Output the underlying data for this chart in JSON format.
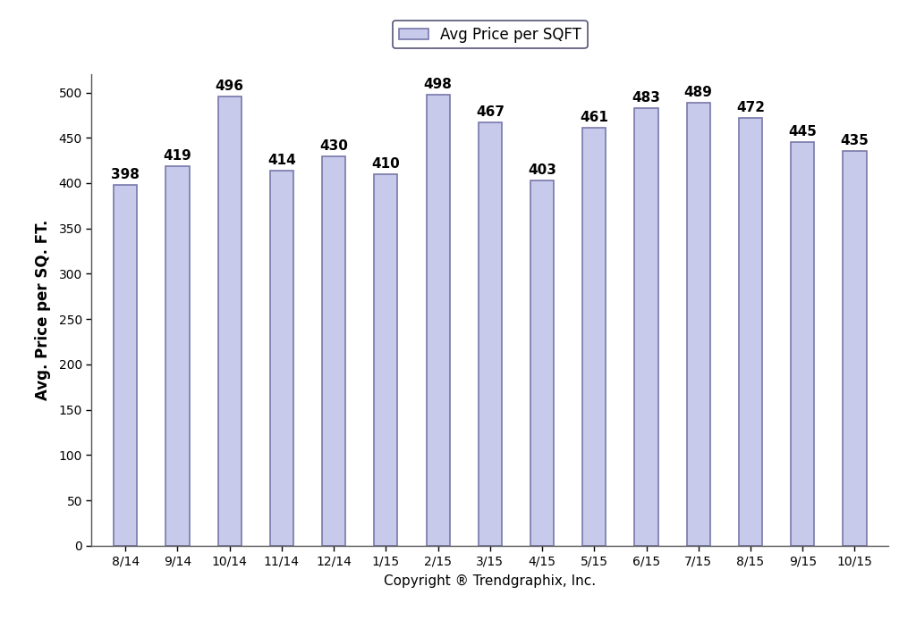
{
  "categories": [
    "8/14",
    "9/14",
    "10/14",
    "11/14",
    "12/14",
    "1/15",
    "2/15",
    "3/15",
    "4/15",
    "5/15",
    "6/15",
    "7/15",
    "8/15",
    "9/15",
    "10/15"
  ],
  "values": [
    398,
    419,
    496,
    414,
    430,
    410,
    498,
    467,
    403,
    461,
    483,
    489,
    472,
    445,
    435
  ],
  "bar_color": "#c8caec",
  "bar_edge_color": "#7878aa",
  "ylabel": "Avg. Price per SQ. FT.",
  "xlabel": "Copyright ® Trendgraphix, Inc.",
  "ylim": [
    0,
    520
  ],
  "yticks": [
    0,
    50,
    100,
    150,
    200,
    250,
    300,
    350,
    400,
    450,
    500
  ],
  "legend_label": "Avg Price per SQFT",
  "legend_box_color": "#c8caec",
  "legend_box_edge": "#7878aa",
  "background_color": "#ffffff",
  "bar_width": 0.45,
  "annotation_fontsize": 11,
  "axis_label_fontsize": 12,
  "tick_fontsize": 10,
  "legend_fontsize": 12
}
